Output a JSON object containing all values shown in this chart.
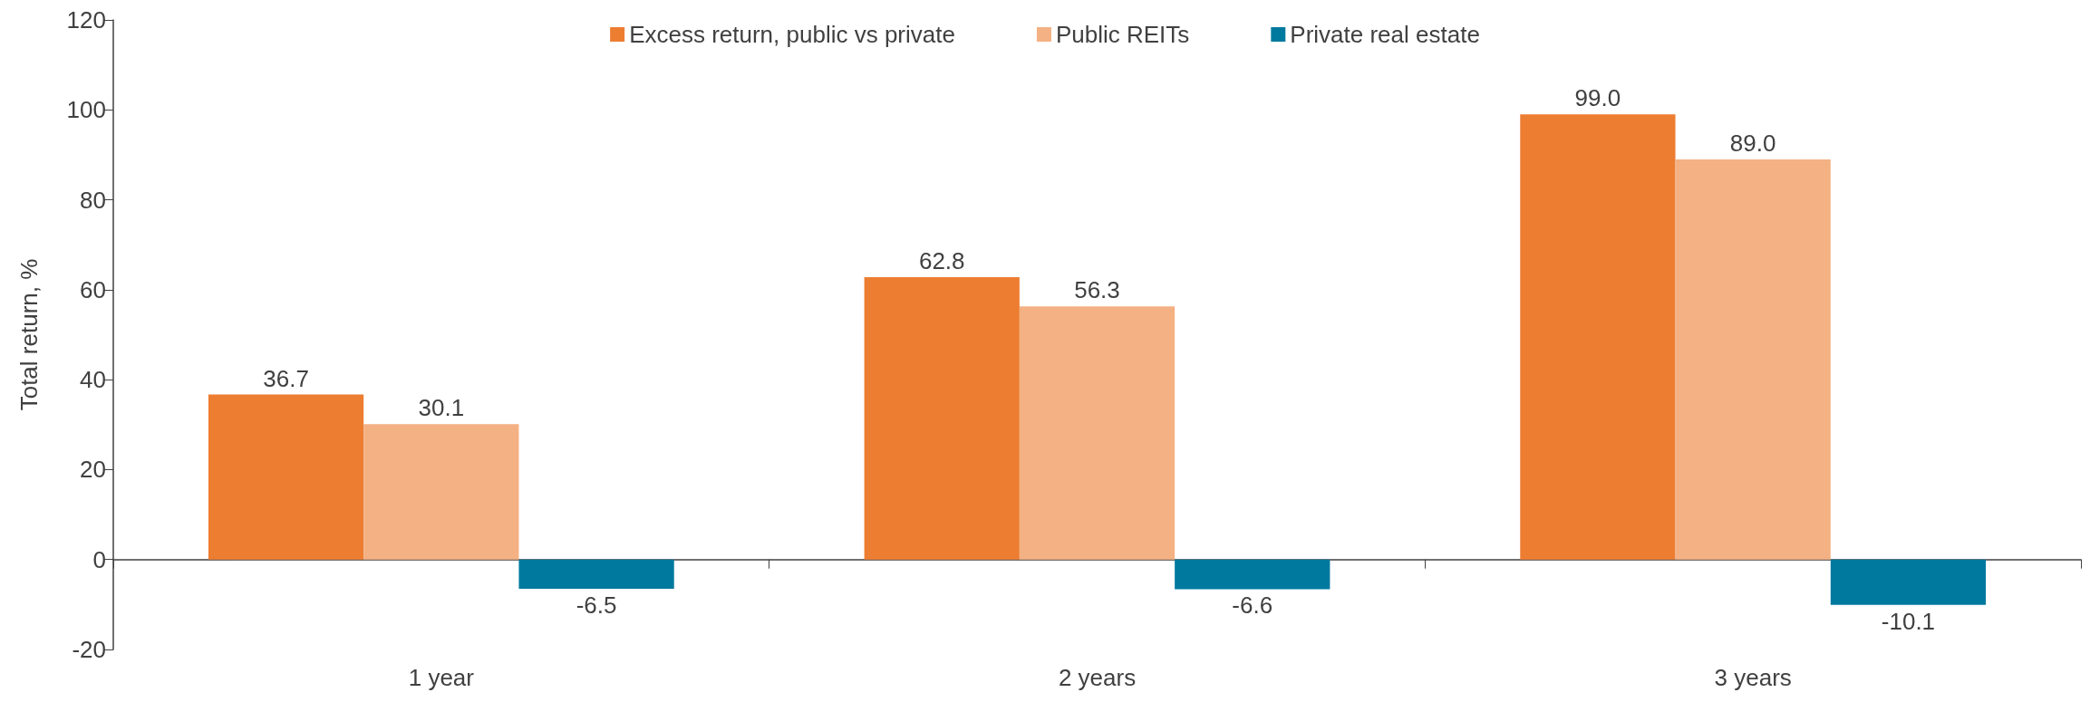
{
  "chart_data": {
    "type": "bar",
    "ylabel": "Total return, %",
    "categories": [
      "1 year",
      "2 years",
      "3 years"
    ],
    "series": [
      {
        "name": "Excess return, public vs private",
        "color": "#ed7d31",
        "values": [
          36.7,
          62.8,
          99.0
        ],
        "value_labels": [
          "36.7",
          "62.8",
          "99.0"
        ]
      },
      {
        "name": "Public REITs",
        "color": "#f4b183",
        "values": [
          30.1,
          56.3,
          89.0
        ],
        "value_labels": [
          "30.1",
          "56.3",
          "89.0"
        ]
      },
      {
        "name": "Private real estate",
        "color": "#00799f",
        "values": [
          -6.5,
          -6.6,
          -10.1
        ],
        "value_labels": [
          "-6.5",
          "-6.6",
          "-10.1"
        ]
      }
    ],
    "ylim": [
      -20,
      120
    ],
    "yticks": [
      -20,
      0,
      20,
      40,
      60,
      80,
      100,
      120
    ],
    "legend": "top"
  }
}
